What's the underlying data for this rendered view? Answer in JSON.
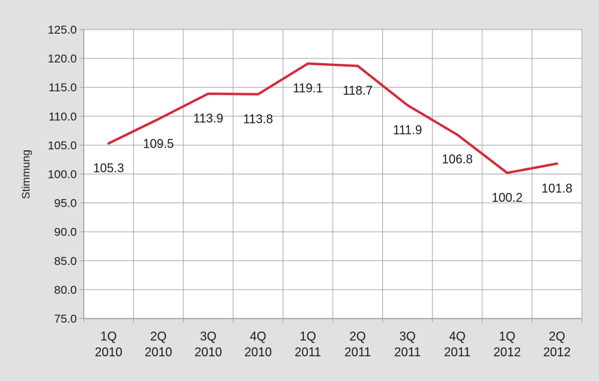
{
  "chart_data": {
    "type": "line",
    "ylabel": "Stimmung",
    "categories": [
      [
        "1Q",
        "2010"
      ],
      [
        "2Q",
        "2010"
      ],
      [
        "3Q",
        "2010"
      ],
      [
        "4Q",
        "2010"
      ],
      [
        "1Q",
        "2011"
      ],
      [
        "2Q",
        "2011"
      ],
      [
        "3Q",
        "2011"
      ],
      [
        "4Q",
        "2011"
      ],
      [
        "1Q",
        "2012"
      ],
      [
        "2Q",
        "2012"
      ]
    ],
    "series": [
      {
        "values": [
          105.3,
          109.5,
          113.9,
          113.8,
          119.1,
          118.7,
          111.9,
          106.8,
          100.2,
          101.8
        ],
        "data_labels": [
          "105.3",
          "109.5",
          "113.9",
          "113.8",
          "119.1",
          "118.7",
          "111.9",
          "106.8",
          "100.2",
          "101.8"
        ],
        "color": "#d42a3a"
      }
    ],
    "ylim": [
      75,
      125
    ],
    "yticks": [
      "75.0",
      "80.0",
      "85.0",
      "90.0",
      "95.0",
      "100.0",
      "105.0",
      "110.0",
      "115.0",
      "120.0",
      "125.0"
    ],
    "grid": true,
    "legend": "none",
    "colors": {
      "background": "#e1e1e1",
      "plot_background": "#ffffff",
      "gridline": "#a6a6a6",
      "line": "#d42a3a"
    }
  }
}
